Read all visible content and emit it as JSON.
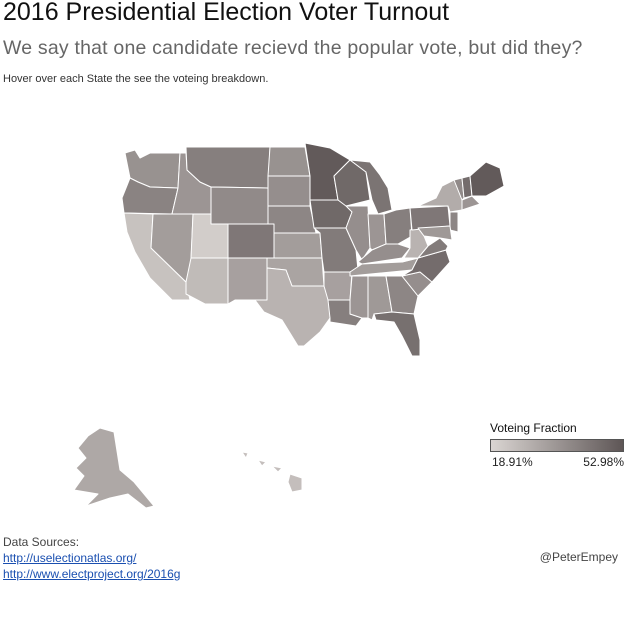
{
  "header": {
    "title": "2016 Presidential Election Voter Turnout",
    "subtitle": "We say that one candidate recievd the popular vote, but did they?",
    "hint": "Hover over each State the see the voteing breakdown."
  },
  "legend": {
    "title": "Voteing Fraction",
    "min_label": "18.91%",
    "max_label": "52.98%",
    "min_value": 18.91,
    "max_value": 52.98,
    "color_low": "#dad5d2",
    "color_high": "#5e5656"
  },
  "colors": {
    "border": "#ffffff",
    "background": "#ffffff"
  },
  "states": [
    {
      "code": "WA",
      "value": 37
    },
    {
      "code": "OR",
      "value": 41
    },
    {
      "code": "CA",
      "value": 24
    },
    {
      "code": "NV",
      "value": 34
    },
    {
      "code": "ID",
      "value": 36
    },
    {
      "code": "MT",
      "value": 42
    },
    {
      "code": "WY",
      "value": 39
    },
    {
      "code": "UT",
      "value": 21
    },
    {
      "code": "AZ",
      "value": 26
    },
    {
      "code": "CO",
      "value": 44
    },
    {
      "code": "NM",
      "value": 33
    },
    {
      "code": "ND",
      "value": 37
    },
    {
      "code": "SD",
      "value": 38
    },
    {
      "code": "NE",
      "value": 40
    },
    {
      "code": "KS",
      "value": 34
    },
    {
      "code": "OK",
      "value": 32
    },
    {
      "code": "TX",
      "value": 28
    },
    {
      "code": "MN",
      "value": 52
    },
    {
      "code": "IA",
      "value": 48
    },
    {
      "code": "MO",
      "value": 43
    },
    {
      "code": "AR",
      "value": 33
    },
    {
      "code": "LA",
      "value": 42
    },
    {
      "code": "WI",
      "value": 48
    },
    {
      "code": "IL",
      "value": 38
    },
    {
      "code": "MI",
      "value": 45
    },
    {
      "code": "IN",
      "value": 36
    },
    {
      "code": "OH",
      "value": 42
    },
    {
      "code": "KY",
      "value": 38
    },
    {
      "code": "TN",
      "value": 34
    },
    {
      "code": "MS",
      "value": 36
    },
    {
      "code": "AL",
      "value": 35
    },
    {
      "code": "GA",
      "value": 40
    },
    {
      "code": "FL",
      "value": 46
    },
    {
      "code": "SC",
      "value": 38
    },
    {
      "code": "NC",
      "value": 47
    },
    {
      "code": "VA",
      "value": 43
    },
    {
      "code": "WV",
      "value": 28
    },
    {
      "code": "PA",
      "value": 44
    },
    {
      "code": "NY",
      "value": 30
    },
    {
      "code": "ME",
      "value": 52
    },
    {
      "code": "NH",
      "value": 47
    },
    {
      "code": "VT",
      "value": 39
    },
    {
      "code": "MA",
      "value": 36
    },
    {
      "code": "NJ",
      "value": 40
    },
    {
      "code": "MD",
      "value": 35
    },
    {
      "code": "AK",
      "value": 31
    },
    {
      "code": "HI",
      "value": 25
    }
  ],
  "sources": {
    "label": "Data Sources:",
    "links": [
      "http://uselectionatlas.org/",
      "http://www.electproject.org/2016g"
    ]
  },
  "credit": "@PeterEmpey"
}
